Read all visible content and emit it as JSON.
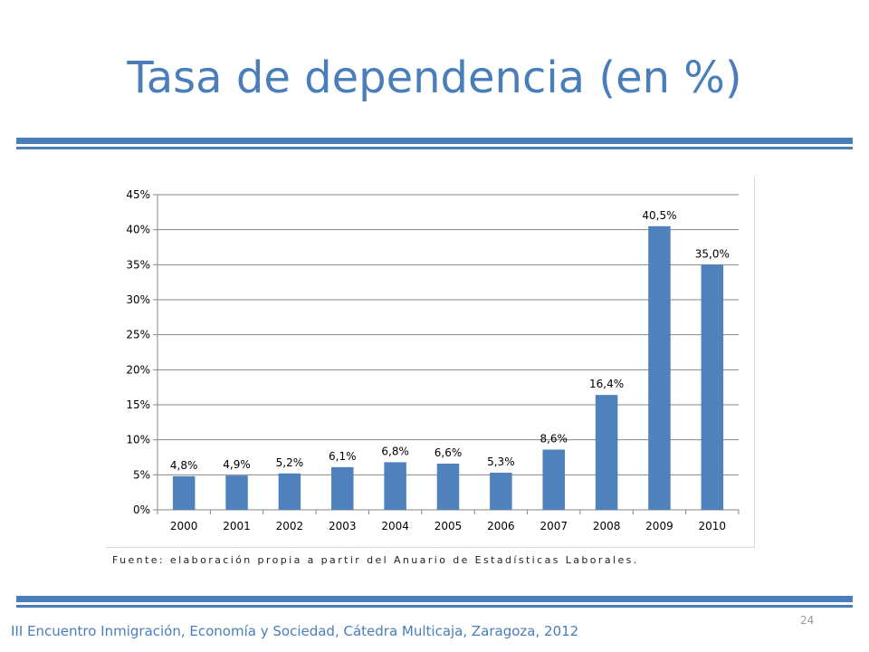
{
  "slide": {
    "title": "Tasa de dependencia (en %)",
    "source_note": "Fuente: elaboración propia a partir del Anuario de Estadísticas Laborales.",
    "page_number": "24",
    "footer": "III Encuentro Inmigración, Economía y Sociedad, Cátedra Multicaja, Zaragoza, 2012"
  },
  "colors": {
    "accent": "#4a7ebb",
    "bar": "#4f81bd",
    "grid": "#868686"
  },
  "chart_data": {
    "type": "bar",
    "categories": [
      "2000",
      "2001",
      "2002",
      "2003",
      "2004",
      "2005",
      "2006",
      "2007",
      "2008",
      "2009",
      "2010"
    ],
    "values": [
      4.8,
      4.9,
      5.2,
      6.1,
      6.8,
      6.6,
      5.3,
      8.6,
      16.4,
      40.5,
      35.0
    ],
    "data_labels": [
      "4,8%",
      "4,9%",
      "5,2%",
      "6,1%",
      "6,8%",
      "6,6%",
      "5,3%",
      "8,6%",
      "16,4%",
      "40,5%",
      "35,0%"
    ],
    "y_ticks": [
      "0%",
      "5%",
      "10%",
      "15%",
      "20%",
      "25%",
      "30%",
      "35%",
      "40%",
      "45%"
    ],
    "ylim": [
      0,
      45
    ],
    "grid": true,
    "legend": "none"
  }
}
